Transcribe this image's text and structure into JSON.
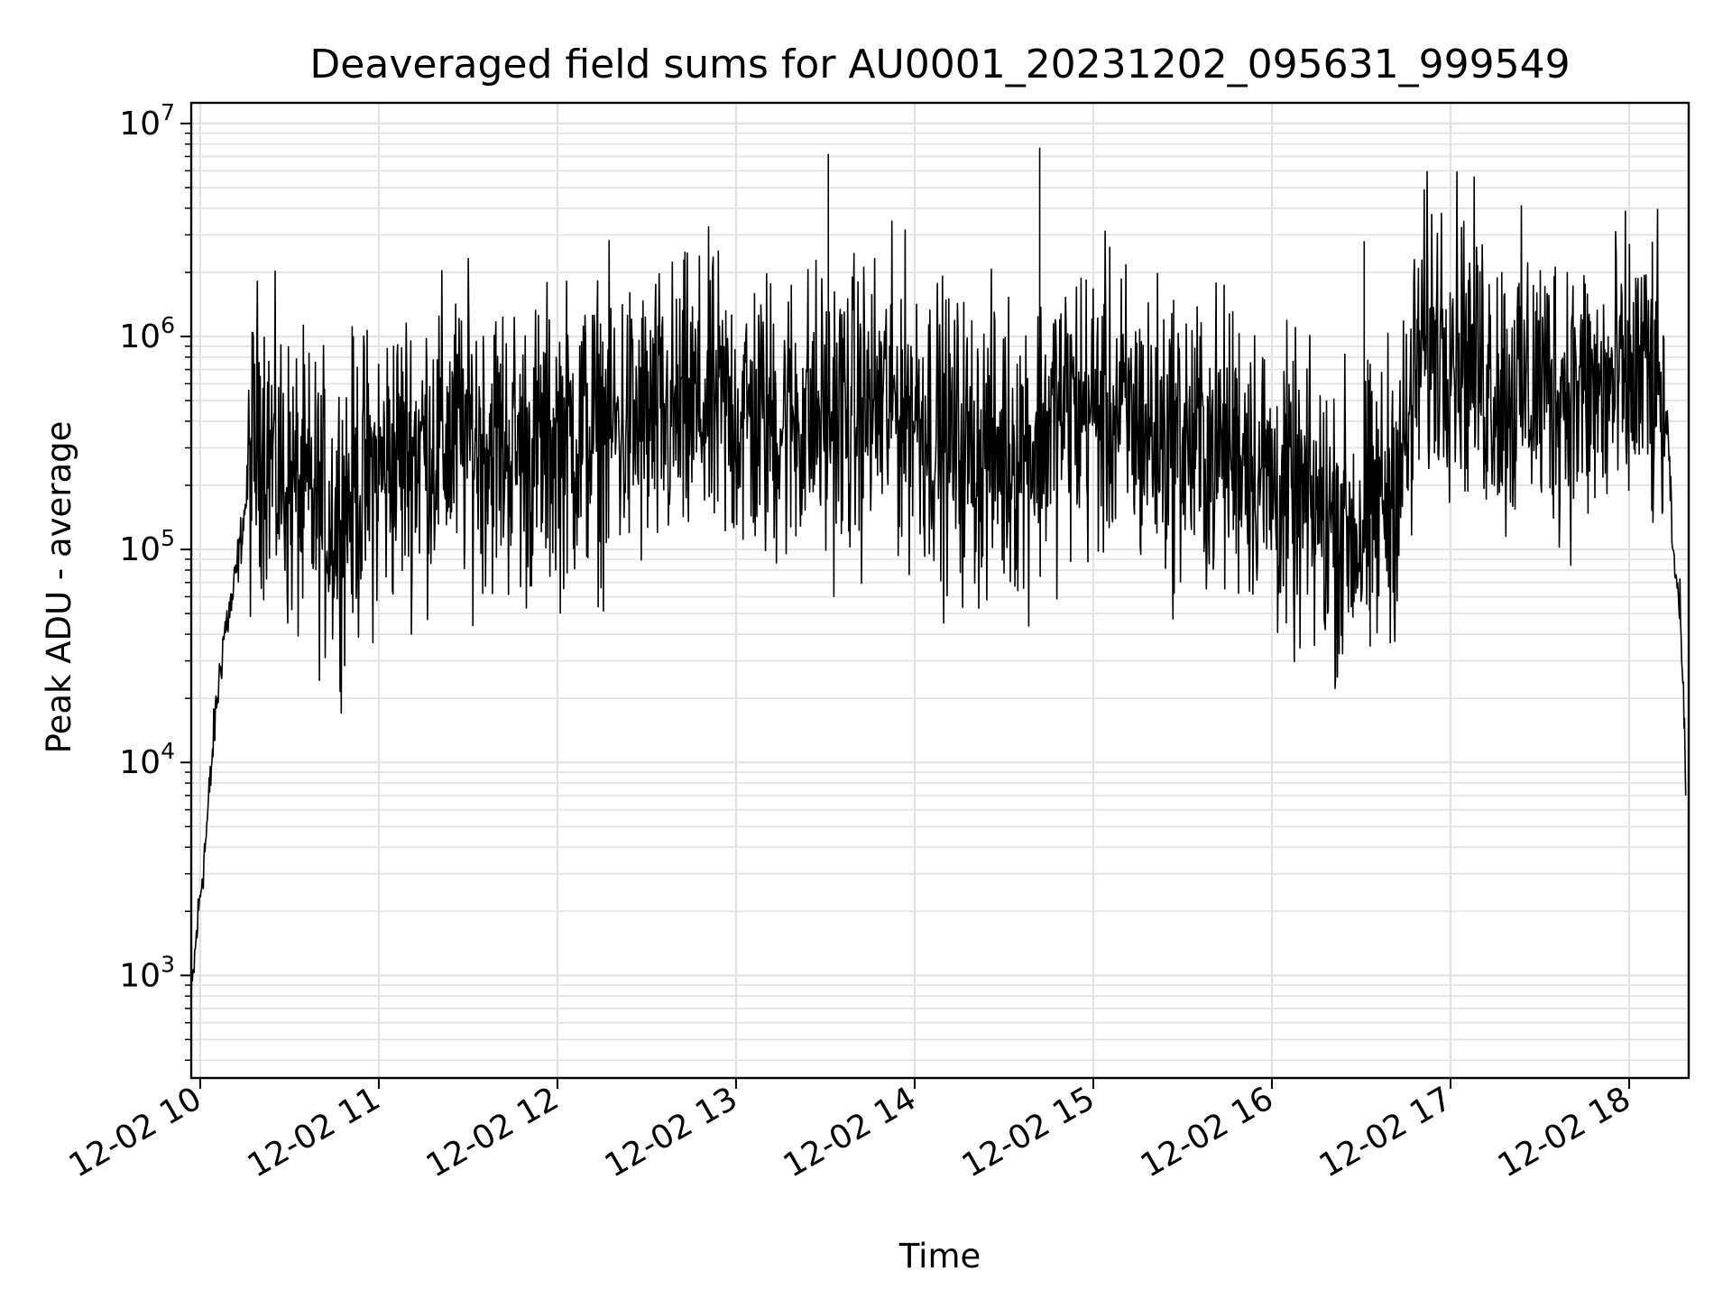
{
  "chart_data": {
    "type": "line",
    "title": "Deaveraged field sums for AU0001_20231202_095631_999549",
    "xlabel": "Time",
    "ylabel": "Peak ADU - average",
    "xscale": "time",
    "yscale": "log",
    "x_tick_labels": [
      "12-02 10",
      "12-02 11",
      "12-02 12",
      "12-02 13",
      "12-02 14",
      "12-02 15",
      "12-02 16",
      "12-02 17",
      "12-02 18"
    ],
    "y_tick_labels": [
      {
        "base": "10",
        "exp": "3",
        "value": 1000
      },
      {
        "base": "10",
        "exp": "4",
        "value": 10000
      },
      {
        "base": "10",
        "exp": "5",
        "value": 100000
      },
      {
        "base": "10",
        "exp": "6",
        "value": 1000000
      },
      {
        "base": "10",
        "exp": "7",
        "value": 10000000
      }
    ],
    "xlim": [
      "2023-12-02 09:57",
      "2023-12-02 18:20"
    ],
    "ylim": [
      330,
      12500000
    ],
    "grid": true,
    "line_color": "#000000",
    "series": [
      {
        "x": [
          "2023-12-02 09:57",
          "2023-12-02 09:59",
          "2023-12-02 10:02",
          "2023-12-02 10:05",
          "2023-12-02 10:08",
          "2023-12-02 10:11",
          "2023-12-02 10:14",
          "2023-12-02 10:17",
          "2023-12-02 10:20",
          "2023-12-02 10:25",
          "2023-12-02 10:30",
          "2023-12-02 10:35",
          "2023-12-02 10:40",
          "2023-12-02 10:45",
          "2023-12-02 10:50",
          "2023-12-02 11:00",
          "2023-12-02 11:10",
          "2023-12-02 11:20",
          "2023-12-02 11:30",
          "2023-12-02 11:40",
          "2023-12-02 11:50",
          "2023-12-02 12:00",
          "2023-12-02 12:10",
          "2023-12-02 12:20",
          "2023-12-02 12:30",
          "2023-12-02 12:40",
          "2023-12-02 12:50",
          "2023-12-02 13:00",
          "2023-12-02 13:10",
          "2023-12-02 13:20",
          "2023-12-02 13:30",
          "2023-12-02 13:40",
          "2023-12-02 13:50",
          "2023-12-02 14:00",
          "2023-12-02 14:10",
          "2023-12-02 14:20",
          "2023-12-02 14:30",
          "2023-12-02 14:40",
          "2023-12-02 14:50",
          "2023-12-02 15:00",
          "2023-12-02 15:10",
          "2023-12-02 15:20",
          "2023-12-02 15:30",
          "2023-12-02 15:40",
          "2023-12-02 15:50",
          "2023-12-02 16:00",
          "2023-12-02 16:10",
          "2023-12-02 16:20",
          "2023-12-02 16:30",
          "2023-12-02 16:40",
          "2023-12-02 16:45",
          "2023-12-02 16:50",
          "2023-12-02 17:00",
          "2023-12-02 17:10",
          "2023-12-02 17:20",
          "2023-12-02 17:30",
          "2023-12-02 17:40",
          "2023-12-02 17:50",
          "2023-12-02 18:00",
          "2023-12-02 18:05",
          "2023-12-02 18:10",
          "2023-12-02 18:13",
          "2023-12-02 18:15",
          "2023-12-02 18:17",
          "2023-12-02 18:19"
        ],
        "y": [
          750,
          1700,
          4500,
          16000,
          40000,
          60000,
          120000,
          250000,
          400000,
          250000,
          200000,
          170000,
          160000,
          140000,
          180000,
          230000,
          300000,
          320000,
          340000,
          320000,
          280000,
          330000,
          350000,
          380000,
          380000,
          420000,
          460000,
          430000,
          400000,
          420000,
          430000,
          440000,
          480000,
          470000,
          330000,
          290000,
          300000,
          320000,
          460000,
          460000,
          420000,
          360000,
          330000,
          300000,
          320000,
          200000,
          160000,
          140000,
          120000,
          200000,
          300000,
          900000,
          1100000,
          700000,
          550000,
          600000,
          580000,
          520000,
          600000,
          700000,
          500000,
          350000,
          80000,
          60000,
          9000
        ]
      }
    ],
    "spikes": [
      {
        "x": "2023-12-02 13:31",
        "y": 7200000
      },
      {
        "x": "2023-12-02 14:42",
        "y": 7700000
      },
      {
        "x": "2023-12-02 16:31",
        "y": 2800000
      },
      {
        "x": "2023-12-02 16:33",
        "y": 35000
      }
    ]
  }
}
